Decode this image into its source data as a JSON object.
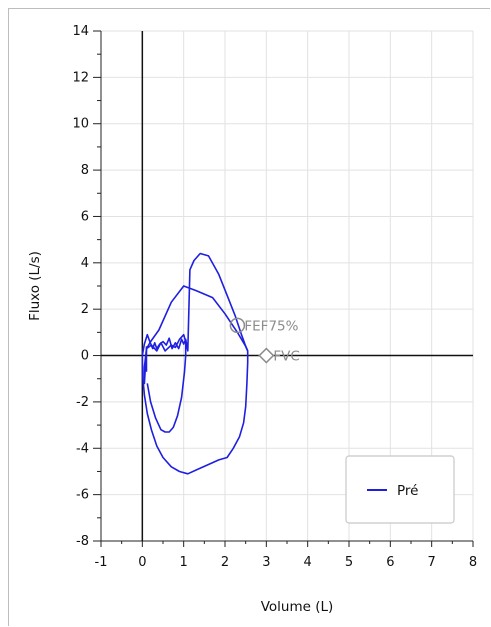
{
  "chart_data": {
    "type": "line",
    "xlabel": "Volume (L)",
    "ylabel": "Fluxo (L/s)",
    "xlim": [
      -1,
      8
    ],
    "ylim": [
      -8,
      14
    ],
    "x_ticks": [
      -1,
      0,
      1,
      2,
      3,
      4,
      5,
      6,
      7,
      8
    ],
    "y_ticks": [
      -8,
      -6,
      -4,
      -2,
      0,
      2,
      4,
      6,
      8,
      10,
      12,
      14
    ],
    "grid": true,
    "legend_position": "bottom-right",
    "series_color": "#1f1fe0",
    "series": [
      {
        "name": "Pré",
        "x": [
          0.0,
          0.05,
          0.12,
          0.18,
          0.25,
          0.3,
          0.35,
          0.42,
          0.5,
          0.58,
          0.65,
          0.72,
          0.8,
          0.88,
          0.95,
          1.0,
          1.05,
          1.1,
          1.15,
          1.25,
          1.4,
          1.6,
          1.85,
          2.05,
          2.25,
          2.4,
          2.5,
          2.55,
          2.55,
          2.53,
          2.5,
          2.45,
          2.35,
          2.2,
          2.05,
          1.85,
          1.6,
          1.35,
          1.1,
          0.9,
          0.7,
          0.5,
          0.35,
          0.22,
          0.12,
          0.05,
          0.01,
          0.0
        ],
        "y": [
          0.0,
          0.5,
          0.9,
          0.6,
          0.3,
          0.55,
          0.3,
          0.5,
          0.6,
          0.45,
          0.75,
          0.3,
          0.55,
          0.3,
          0.7,
          0.5,
          0.7,
          0.2,
          3.7,
          4.1,
          4.4,
          4.3,
          3.5,
          2.6,
          1.7,
          0.9,
          0.4,
          0.2,
          -0.3,
          -1.2,
          -2.2,
          -2.9,
          -3.5,
          -4.0,
          -4.4,
          -4.5,
          -4.7,
          -4.9,
          -5.1,
          -5.0,
          -4.8,
          -4.4,
          -3.9,
          -3.2,
          -2.5,
          -1.7,
          -0.9,
          0.0
        ]
      }
    ],
    "loop_2": {
      "x": [
        0.12,
        0.2,
        0.32,
        0.45,
        0.55,
        0.65,
        0.75,
        0.85,
        0.95,
        1.02,
        1.05,
        1.05,
        1.0,
        0.9,
        0.8,
        0.7,
        0.55,
        0.45,
        0.35,
        0.22,
        0.1,
        0.05,
        0.05,
        0.1,
        0.2,
        0.4,
        0.7,
        1.0,
        1.3,
        1.7,
        2.0,
        2.3,
        2.5,
        2.55
      ],
      "y": [
        -1.2,
        -2.0,
        -2.7,
        -3.2,
        -3.3,
        -3.3,
        -3.1,
        -2.6,
        -1.8,
        -0.7,
        0.0,
        0.6,
        0.9,
        0.7,
        0.35,
        0.45,
        0.2,
        0.55,
        0.2,
        0.45,
        0.3,
        -0.5,
        -1.2,
        0.3,
        0.6,
        1.1,
        2.3,
        3.0,
        2.8,
        2.5,
        1.8,
        1.0,
        0.4,
        0.2
      ]
    },
    "annotations": [
      {
        "label": "FEF75%",
        "x": 2.3,
        "y": 1.3,
        "marker": "circle"
      },
      {
        "label": "FVC",
        "x": 3.0,
        "y": 0.0,
        "marker": "diamond"
      }
    ]
  }
}
